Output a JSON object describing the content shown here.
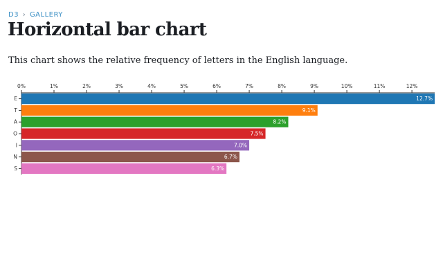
{
  "breadcrumb": {
    "root": "D3",
    "separator": "›",
    "current": "GALLERY"
  },
  "page_title": "Horizontal bar chart",
  "subtitle": "This chart shows the relative frequency of letters in the English language.",
  "chart_data": {
    "type": "bar",
    "orientation": "horizontal",
    "title": "",
    "xlabel": "",
    "ylabel": "",
    "xlim": [
      0,
      12.7
    ],
    "x_ticks": [
      0,
      1,
      2,
      3,
      4,
      5,
      6,
      7,
      8,
      9,
      10,
      11,
      12
    ],
    "tick_suffix": "%",
    "categories": [
      "E",
      "T",
      "A",
      "O",
      "I",
      "N",
      "S"
    ],
    "values": [
      12.7,
      9.1,
      8.2,
      7.5,
      7.0,
      6.7,
      6.3
    ],
    "labels": [
      "12.7%",
      "9.1%",
      "8.2%",
      "7.5%",
      "7.0%",
      "6.7%",
      "6.3%"
    ],
    "colors": [
      "#1f77b4",
      "#ff7f0e",
      "#2ca02c",
      "#d62728",
      "#9467bd",
      "#8c564b",
      "#e377c2"
    ],
    "grid": false,
    "axis_position": "top"
  }
}
